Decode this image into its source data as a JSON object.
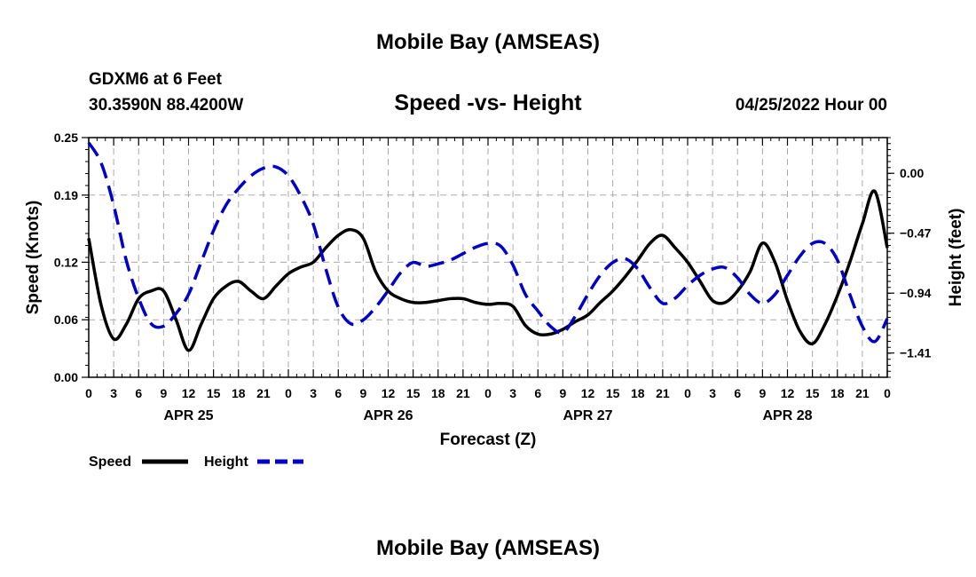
{
  "page": {
    "title": "Mobile Bay (AMSEAS)",
    "footer_title": "Mobile Bay (AMSEAS)",
    "station": "GDXM6 at 6 Feet",
    "coords": "30.3590N  88.4200W",
    "datetime": "04/25/2022 Hour 00"
  },
  "chart_data": {
    "type": "line",
    "title": "Speed -vs- Height",
    "xlabel": "Forecast (Z)",
    "ylabel": "Speed (Knots)",
    "y2label": "Height (feet)",
    "xlim": [
      0,
      96
    ],
    "ylim": [
      0,
      0.25
    ],
    "y2lim": [
      -1.6,
      0.28
    ],
    "grid": true,
    "x_tick_labels": [
      "0",
      "3",
      "6",
      "9",
      "12",
      "15",
      "18",
      "21",
      "0",
      "3",
      "6",
      "9",
      "12",
      "15",
      "18",
      "21",
      "0",
      "3",
      "6",
      "9",
      "12",
      "15",
      "18",
      "21",
      "0",
      "3",
      "6",
      "9",
      "12",
      "15",
      "18",
      "21",
      "0"
    ],
    "y_ticks": [
      0.0,
      0.06,
      0.12,
      0.19,
      0.25
    ],
    "y_tick_labels": [
      "0.00",
      "0.06",
      "0.12",
      "0.19",
      "0.25"
    ],
    "y2_ticks": [
      0.0,
      -0.47,
      -0.94,
      -1.41
    ],
    "y2_tick_labels": [
      "0.00",
      "−0.47",
      "−0.94",
      "−1.41"
    ],
    "day_labels": [
      {
        "x": 12,
        "label": "APR 25"
      },
      {
        "x": 36,
        "label": "APR 26"
      },
      {
        "x": 60,
        "label": "APR 27"
      },
      {
        "x": 84,
        "label": "APR 28"
      }
    ],
    "series": [
      {
        "name": "Speed",
        "axis": "left",
        "color": "#000000",
        "dash": false,
        "points": [
          [
            0,
            0.145
          ],
          [
            1.5,
            0.075
          ],
          [
            3,
            0.04
          ],
          [
            4.5,
            0.055
          ],
          [
            6,
            0.082
          ],
          [
            7.5,
            0.09
          ],
          [
            9,
            0.09
          ],
          [
            10.5,
            0.06
          ],
          [
            12,
            0.028
          ],
          [
            13.5,
            0.055
          ],
          [
            15,
            0.082
          ],
          [
            16.5,
            0.095
          ],
          [
            18,
            0.1
          ],
          [
            19.5,
            0.09
          ],
          [
            21,
            0.082
          ],
          [
            22.5,
            0.095
          ],
          [
            24,
            0.108
          ],
          [
            25.5,
            0.115
          ],
          [
            27,
            0.12
          ],
          [
            28.5,
            0.135
          ],
          [
            30,
            0.148
          ],
          [
            31.5,
            0.154
          ],
          [
            33,
            0.145
          ],
          [
            34.5,
            0.11
          ],
          [
            36,
            0.09
          ],
          [
            37.5,
            0.082
          ],
          [
            39,
            0.078
          ],
          [
            40.5,
            0.078
          ],
          [
            42,
            0.08
          ],
          [
            43.5,
            0.082
          ],
          [
            45,
            0.082
          ],
          [
            46.5,
            0.078
          ],
          [
            48,
            0.076
          ],
          [
            49.5,
            0.077
          ],
          [
            51,
            0.074
          ],
          [
            52.5,
            0.054
          ],
          [
            54,
            0.045
          ],
          [
            55.5,
            0.045
          ],
          [
            57,
            0.05
          ],
          [
            58.5,
            0.058
          ],
          [
            60,
            0.065
          ],
          [
            61.5,
            0.078
          ],
          [
            63,
            0.09
          ],
          [
            64.5,
            0.105
          ],
          [
            66,
            0.122
          ],
          [
            67.5,
            0.14
          ],
          [
            69,
            0.148
          ],
          [
            70.5,
            0.135
          ],
          [
            72,
            0.12
          ],
          [
            73.5,
            0.1
          ],
          [
            75,
            0.08
          ],
          [
            76.5,
            0.078
          ],
          [
            78,
            0.09
          ],
          [
            79.5,
            0.11
          ],
          [
            81,
            0.14
          ],
          [
            82.5,
            0.12
          ],
          [
            84,
            0.08
          ],
          [
            85.5,
            0.048
          ],
          [
            87,
            0.035
          ],
          [
            88.5,
            0.055
          ],
          [
            90,
            0.085
          ],
          [
            91.5,
            0.12
          ],
          [
            93,
            0.16
          ],
          [
            94.5,
            0.194
          ],
          [
            96,
            0.135
          ]
        ]
      },
      {
        "name": "Height",
        "axis": "right",
        "color": "#0000c8",
        "dash": true,
        "points": [
          [
            0,
            0.24
          ],
          [
            1.5,
            0.08
          ],
          [
            3,
            -0.25
          ],
          [
            4.5,
            -0.68
          ],
          [
            6,
            -0.98
          ],
          [
            7.5,
            -1.18
          ],
          [
            9,
            -1.2
          ],
          [
            10.5,
            -1.1
          ],
          [
            12,
            -0.95
          ],
          [
            13.5,
            -0.7
          ],
          [
            15,
            -0.45
          ],
          [
            16.5,
            -0.25
          ],
          [
            18,
            -0.12
          ],
          [
            19.5,
            -0.02
          ],
          [
            21,
            0.04
          ],
          [
            22.5,
            0.05
          ],
          [
            24,
            -0.02
          ],
          [
            25.5,
            -0.18
          ],
          [
            27,
            -0.4
          ],
          [
            28.5,
            -0.75
          ],
          [
            30,
            -1.05
          ],
          [
            31.5,
            -1.18
          ],
          [
            33,
            -1.15
          ],
          [
            34.5,
            -1.05
          ],
          [
            36,
            -0.92
          ],
          [
            37.5,
            -0.78
          ],
          [
            39,
            -0.7
          ],
          [
            40.5,
            -0.73
          ],
          [
            42,
            -0.71
          ],
          [
            43.5,
            -0.68
          ],
          [
            45,
            -0.63
          ],
          [
            46.5,
            -0.58
          ],
          [
            48,
            -0.55
          ],
          [
            49.5,
            -0.57
          ],
          [
            51,
            -0.72
          ],
          [
            52.5,
            -0.95
          ],
          [
            54,
            -1.08
          ],
          [
            55.5,
            -1.2
          ],
          [
            57,
            -1.25
          ],
          [
            58.5,
            -1.12
          ],
          [
            60,
            -0.95
          ],
          [
            61.5,
            -0.8
          ],
          [
            63,
            -0.7
          ],
          [
            64.5,
            -0.67
          ],
          [
            66,
            -0.75
          ],
          [
            67.5,
            -0.9
          ],
          [
            69,
            -1.02
          ],
          [
            70.5,
            -0.98
          ],
          [
            72,
            -0.88
          ],
          [
            73.5,
            -0.8
          ],
          [
            75,
            -0.75
          ],
          [
            76.5,
            -0.74
          ],
          [
            78,
            -0.82
          ],
          [
            79.5,
            -0.95
          ],
          [
            81,
            -1.02
          ],
          [
            82.5,
            -0.95
          ],
          [
            84,
            -0.8
          ],
          [
            85.5,
            -0.65
          ],
          [
            87,
            -0.55
          ],
          [
            88.5,
            -0.55
          ],
          [
            90,
            -0.68
          ],
          [
            91.5,
            -0.95
          ],
          [
            93,
            -1.2
          ],
          [
            94.5,
            -1.32
          ],
          [
            96,
            -1.14
          ]
        ]
      }
    ]
  }
}
